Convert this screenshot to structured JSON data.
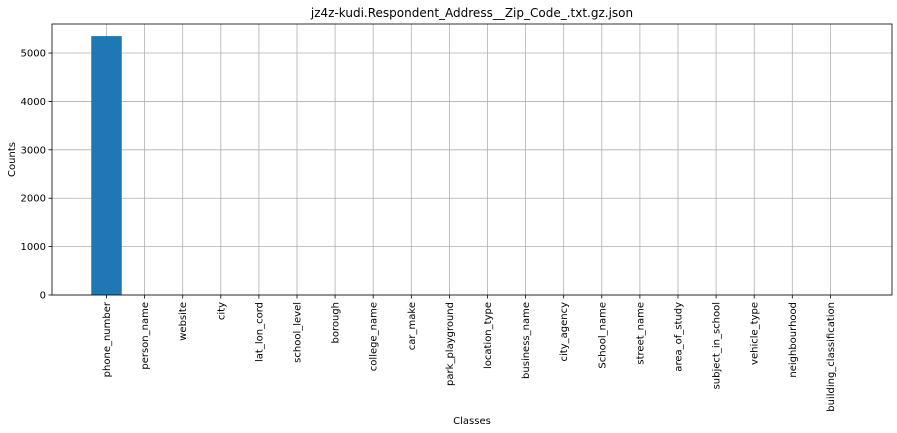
{
  "chart_data": {
    "type": "bar",
    "title": "jz4z-kudi.Respondent_Address__Zip_Code_.txt.gz.json",
    "xlabel": "Classes",
    "ylabel": "Counts",
    "categories": [
      "phone_number",
      "person_name",
      "website",
      "city",
      "lat_lon_cord",
      "school_level",
      "borough",
      "college_name",
      "car_make",
      "park_playground",
      "location_type",
      "business_name",
      "city_agency",
      "School_name",
      "street_name",
      "area_of_study",
      "subject_in_school",
      "vehicle_type",
      "neighbourhood",
      "building_classification"
    ],
    "values": [
      5350,
      0,
      0,
      0,
      0,
      0,
      0,
      0,
      0,
      0,
      0,
      0,
      0,
      0,
      0,
      0,
      0,
      0,
      0,
      0
    ],
    "ylim": [
      0,
      5600
    ],
    "yticks": [
      0,
      1000,
      2000,
      3000,
      4000,
      5000
    ],
    "grid": true,
    "bar_color": "#1f77b4"
  }
}
